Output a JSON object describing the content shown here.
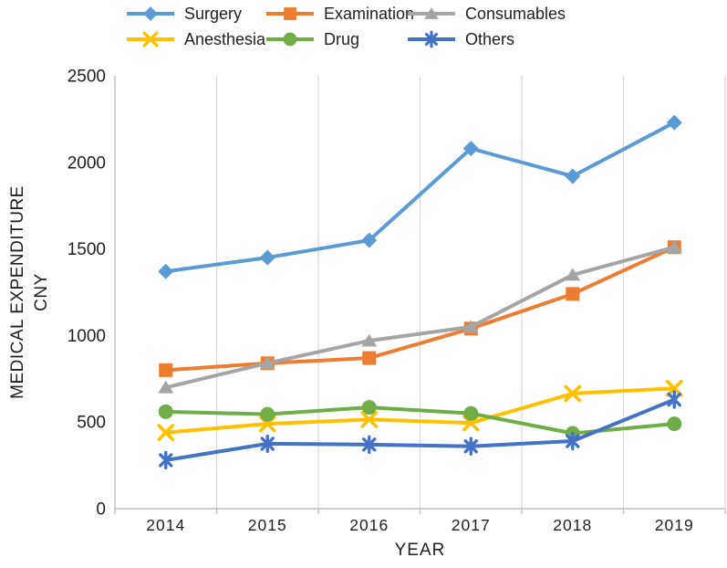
{
  "chart_data": {
    "type": "line",
    "title": "",
    "xlabel": "YEAR",
    "ylabel_line1": "MEDICAL EXPENDITURE",
    "ylabel_line2": "CNY",
    "categories": [
      "2014",
      "2015",
      "2016",
      "2017",
      "2018",
      "2019"
    ],
    "y_ticks": [
      0,
      500,
      1000,
      1500,
      2000,
      2500
    ],
    "ylim": [
      0,
      2500
    ],
    "grid": "vertical-between-categories",
    "legend_position": "top",
    "series": [
      {
        "name": "Surgery",
        "color": "#5B9BD5",
        "marker": "diamond",
        "values": [
          1370,
          1450,
          1550,
          2080,
          1920,
          2230
        ]
      },
      {
        "name": "Examination",
        "color": "#ED7D31",
        "marker": "square",
        "values": [
          800,
          840,
          870,
          1040,
          1240,
          1510
        ]
      },
      {
        "name": "Consumables",
        "color": "#A5A5A5",
        "marker": "triangle",
        "values": [
          700,
          840,
          970,
          1050,
          1350,
          1510
        ]
      },
      {
        "name": "Anesthesia",
        "color": "#FFC000",
        "marker": "x",
        "values": [
          440,
          490,
          515,
          495,
          665,
          695
        ]
      },
      {
        "name": "Drug",
        "color": "#70AD47",
        "marker": "circle",
        "values": [
          560,
          545,
          585,
          550,
          435,
          490
        ]
      },
      {
        "name": "Others",
        "color": "#4472C4",
        "marker": "asterisk",
        "values": [
          280,
          375,
          370,
          360,
          390,
          630
        ]
      }
    ]
  },
  "axes": {
    "tick_label_color": "#1f1f1f",
    "axis_line_color": "#BFBFBF",
    "gridline_color": "#D9D9D9"
  }
}
